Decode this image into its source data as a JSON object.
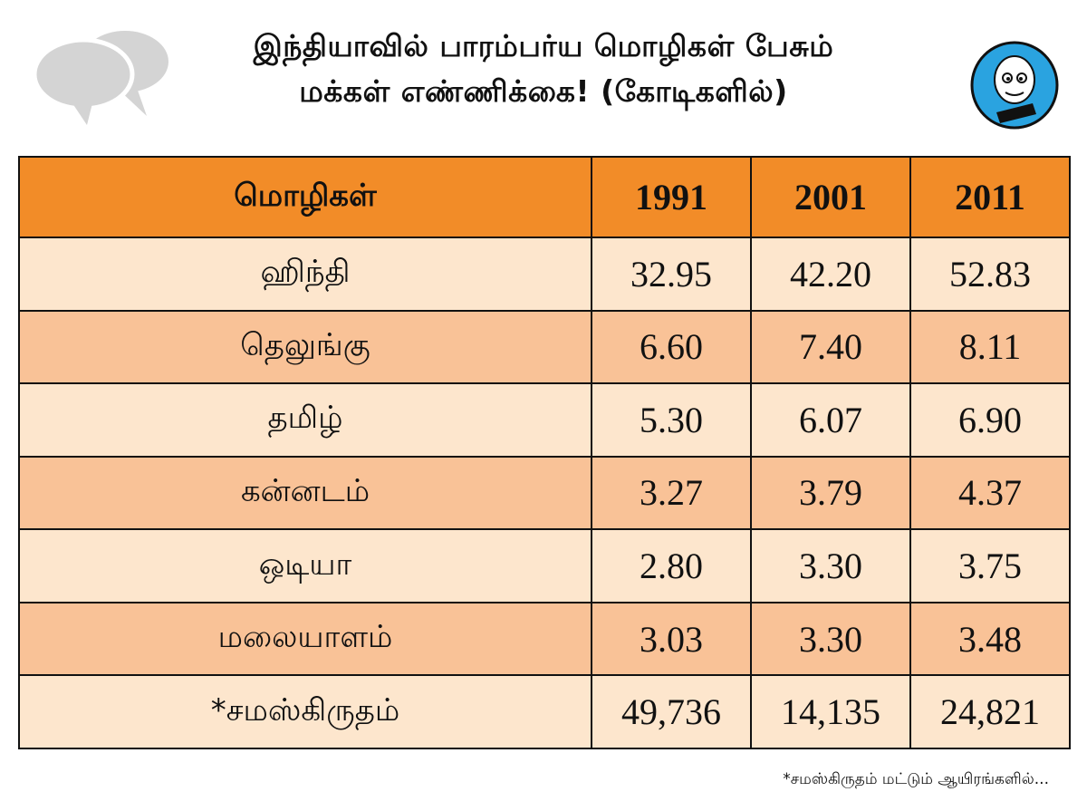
{
  "title": {
    "line1": "இந்தியாவில் பாரம்பர்ய மொழிகள் பேசும்",
    "line2": "மக்கள் எண்ணிக்கை! (கோடிகளில்)"
  },
  "table": {
    "headers": [
      "மொழிகள்",
      "1991",
      "2001",
      "2011"
    ],
    "rows": [
      {
        "language": "ஹிந்தி",
        "y1991": "32.95",
        "y2001": "42.20",
        "y2011": "52.83"
      },
      {
        "language": "தெலுங்கு",
        "y1991": "6.60",
        "y2001": "7.40",
        "y2011": "8.11"
      },
      {
        "language": "தமிழ்",
        "y1991": "5.30",
        "y2001": "6.07",
        "y2011": "6.90"
      },
      {
        "language": "கன்னடம்",
        "y1991": "3.27",
        "y2001": "3.79",
        "y2011": "4.37"
      },
      {
        "language": "ஒடியா",
        "y1991": "2.80",
        "y2001": "3.30",
        "y2011": "3.75"
      },
      {
        "language": "மலையாளம்",
        "y1991": "3.03",
        "y2001": "3.30",
        "y2011": "3.48"
      },
      {
        "language": "*சமஸ்கிருதம்",
        "y1991": "49,736",
        "y2001": "14,135",
        "y2011": "24,821"
      }
    ]
  },
  "footnote": "*சமஸ்கிருதம் மட்டும் ஆயிரங்களில்...",
  "colors": {
    "header_bg": "#f28c28",
    "row_light": "#fde6cd",
    "row_dark": "#f9c297",
    "bubble": "#d4d4d4",
    "mascot_bg": "#2aa3e0"
  },
  "icons": {
    "bubbles": "speech-bubbles-icon",
    "mascot": "mascot-logo"
  }
}
